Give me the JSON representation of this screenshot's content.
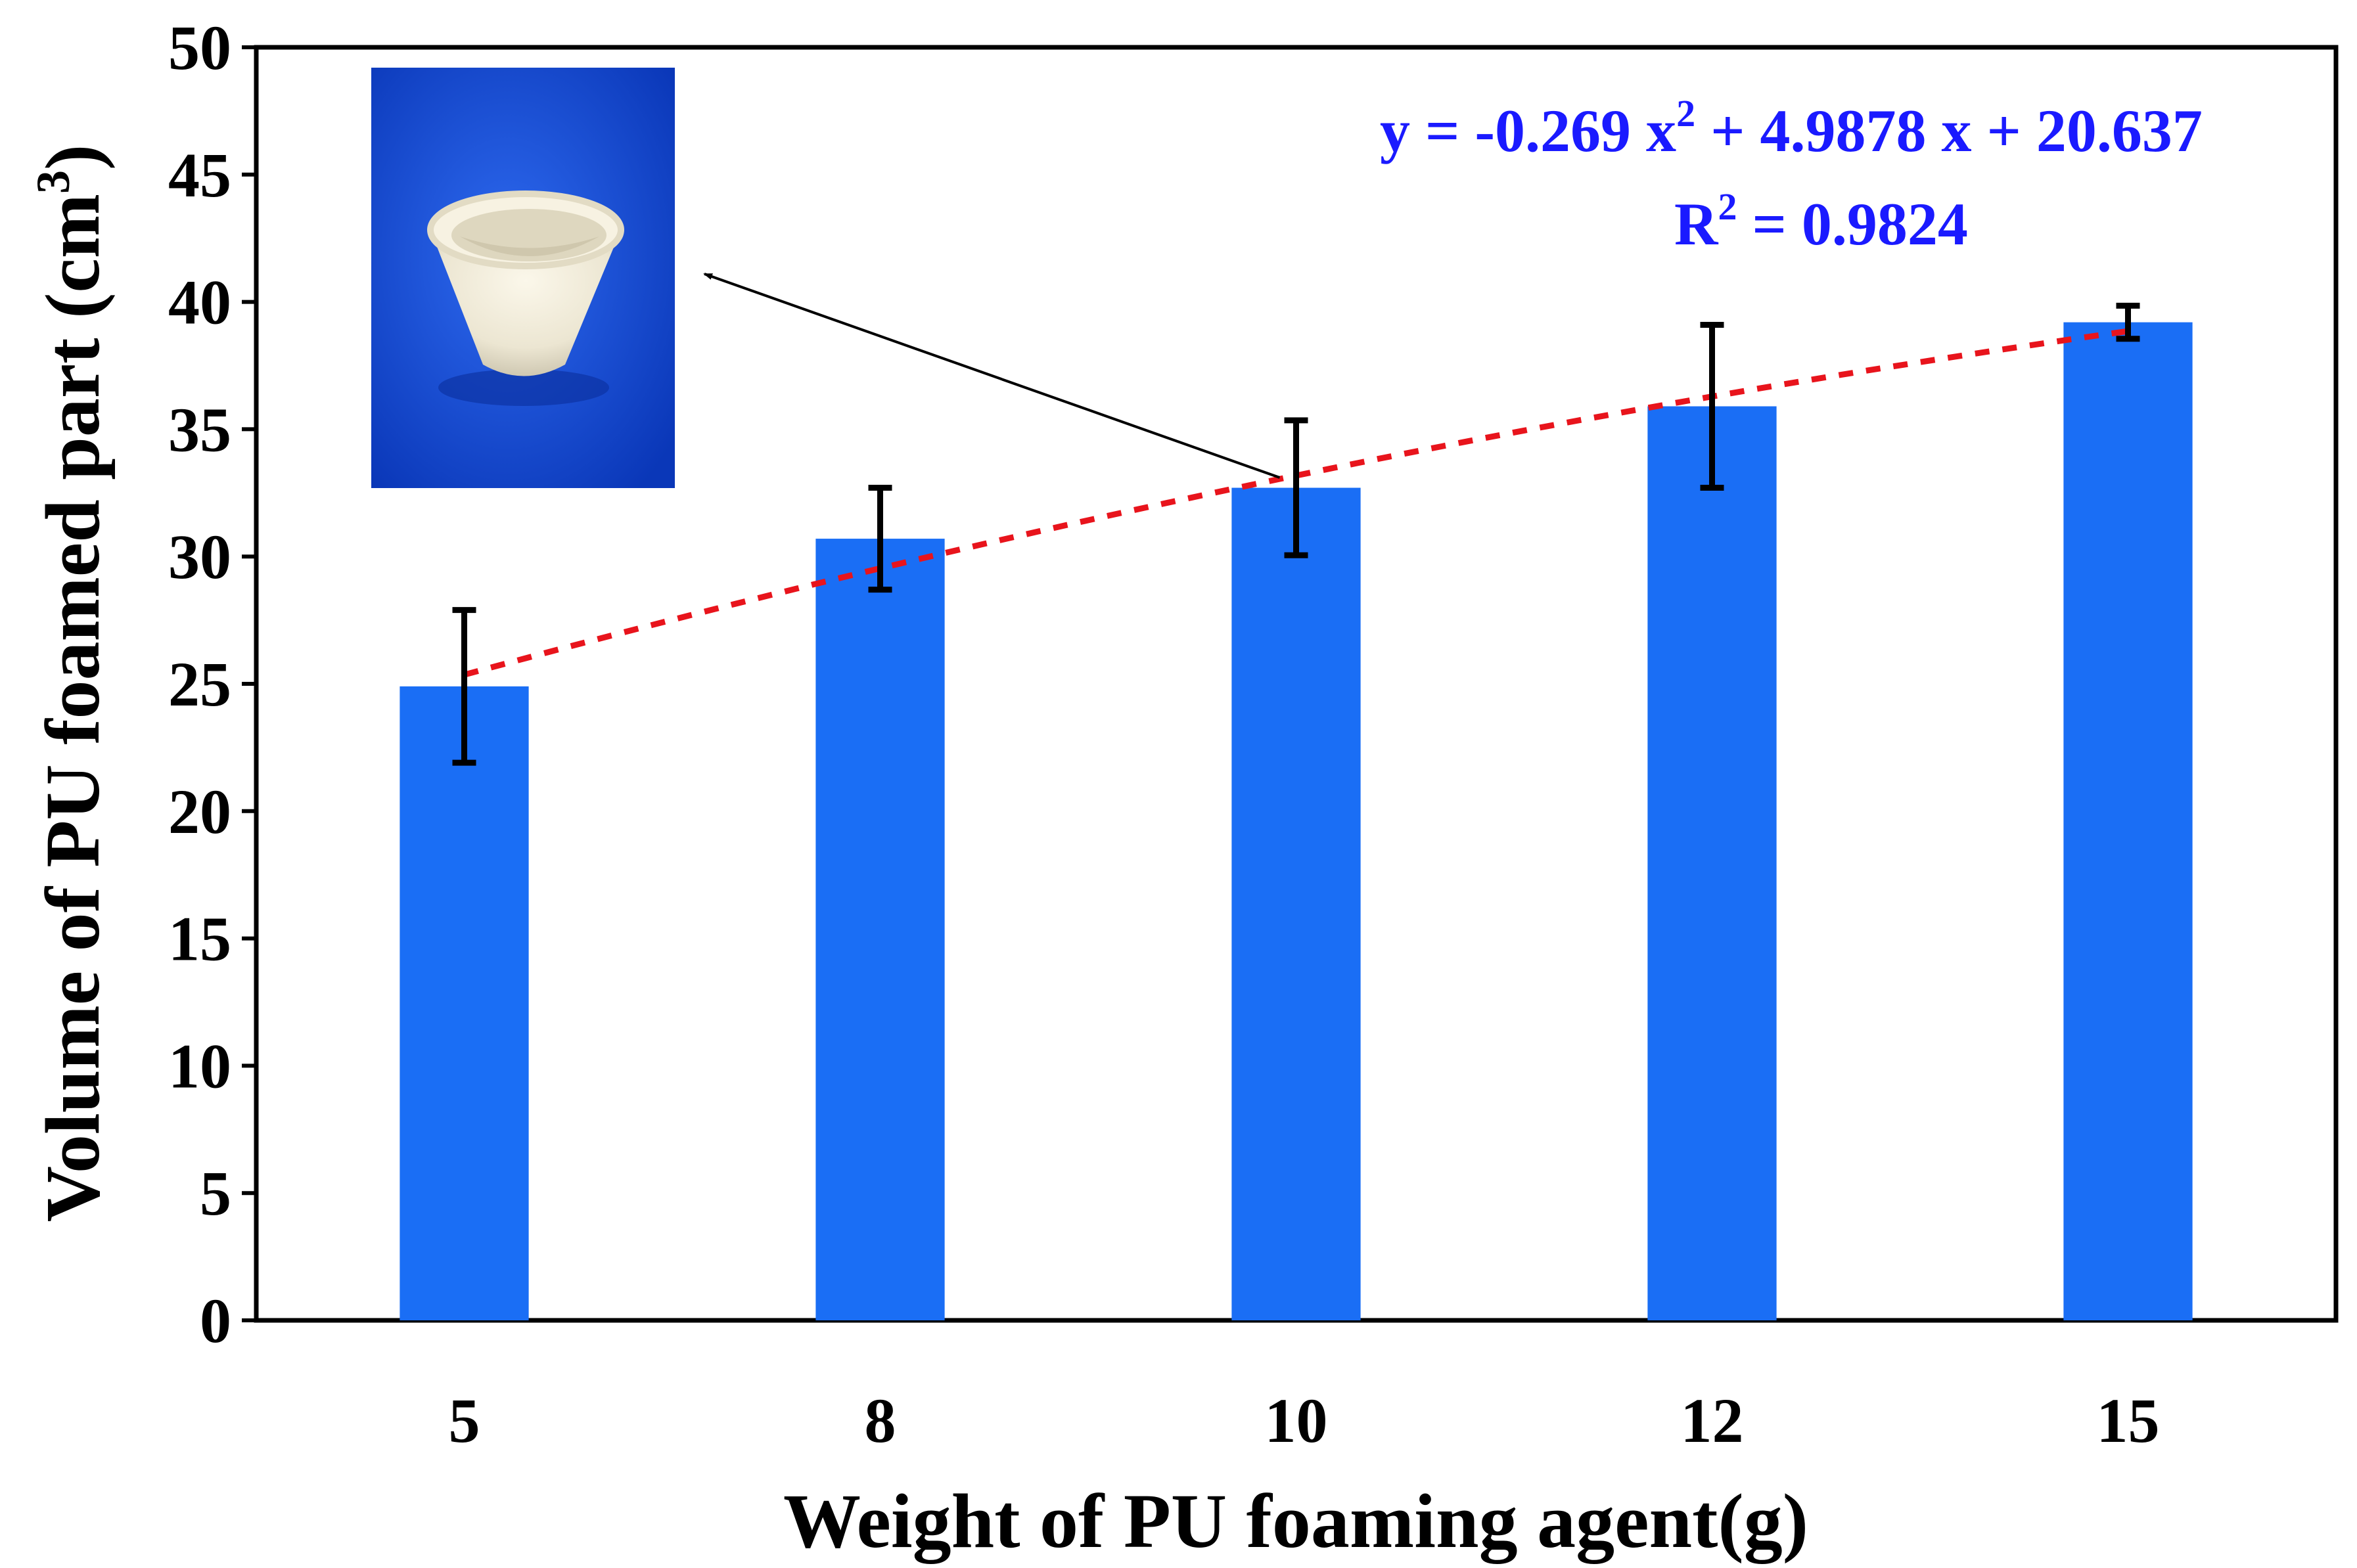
{
  "chart_data": {
    "type": "bar",
    "xlabel": "Weight of PU foaming agent(g)",
    "ylabel": "Volume of PU foamed part (cm",
    "ylabel_superscript": "3",
    "ylabel_suffix": ")",
    "categories": [
      "5",
      "8",
      "10",
      "12",
      "15"
    ],
    "series": [
      {
        "values": [
          24.9,
          30.7,
          32.7,
          35.9,
          39.2
        ],
        "error": [
          3.0,
          2.0,
          2.65,
          3.2,
          0.65
        ],
        "color": "#1a6ef5"
      }
    ],
    "trendline": {
      "type": "polynomial",
      "equation_prefix": "y = -0.269 x",
      "equation_exp": "2",
      "equation_suffix": " + 4.9878 x + 20.637",
      "r2_prefix": "R",
      "r2_exp": "2",
      "r2_suffix": " = 0.9824",
      "coefficients": [
        -0.269,
        4.9878,
        20.637
      ],
      "color": "#e8141c",
      "text_color": "#1a1aff"
    },
    "ylim": [
      0,
      50
    ],
    "yticks": [
      "0",
      "5",
      "10",
      "15",
      "20",
      "25",
      "30",
      "35",
      "40",
      "45",
      "50"
    ],
    "grid": false,
    "legend": "none",
    "inset": {
      "description_icon": "foamed-cup-photo",
      "background_color": "#1247d8",
      "points_to_category": "10"
    }
  }
}
